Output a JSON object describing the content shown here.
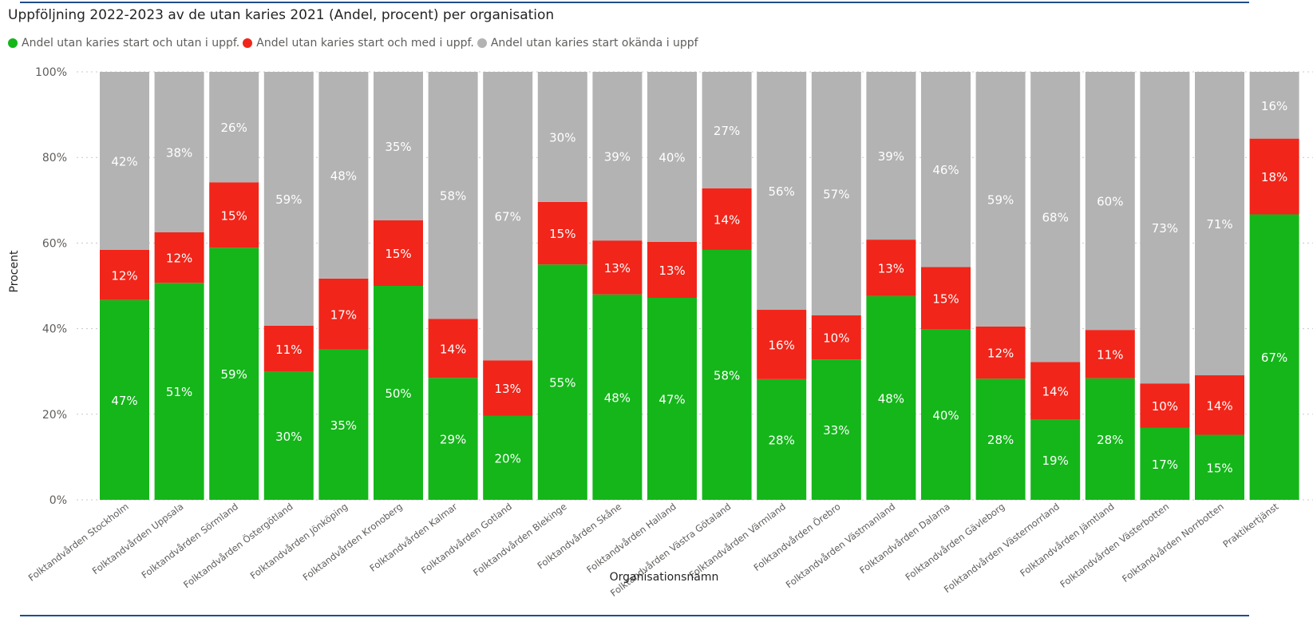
{
  "chart_data": {
    "type": "bar",
    "stacked": true,
    "title": "Uppföljning 2022-2023 av de utan karies 2021 (Andel, procent) per organisation",
    "xlabel": "Organisationsnamn",
    "ylabel": "Procent",
    "ylim": [
      0,
      100
    ],
    "yticks": [
      "0%",
      "20%",
      "40%",
      "60%",
      "80%",
      "100%"
    ],
    "grid": true,
    "legend_position": "top-left",
    "categories": [
      "Folktandvården Stockholm",
      "Folktandvården Uppsala",
      "Folktandvården Sörmland",
      "Folktandvården Östergötland",
      "Folktandvården Jönköping",
      "Folktandvården Kronoberg",
      "Folktandvården Kalmar",
      "Folktandvården Gotland",
      "Folktandvården Blekinge",
      "Folktandvården Skåne",
      "Folktandvården Halland",
      "Folktandvården Västra Götaland",
      "Folktandvården Värmland",
      "Folktandvården Örebro",
      "Folktandvården Västmanland",
      "Folktandvården Dalarna",
      "Folktandvården Gävleborg",
      "Folktandvården Västernorrland",
      "Folktandvården Jämtland",
      "Folktandvården Västerbotten",
      "Folktandvården Norrbotten",
      "Praktikertjänst"
    ],
    "series": [
      {
        "name": "Andel utan karies start och utan i uppf.",
        "color": "#14b61a",
        "values": [
          46.7,
          50.7,
          58.9,
          29.9,
          35.1,
          50.0,
          28.5,
          19.6,
          55.0,
          48.0,
          47.2,
          58.4,
          28.2,
          32.8,
          47.6,
          39.8,
          28.3,
          18.7,
          28.4,
          16.8,
          15.2,
          66.7
        ],
        "labels": [
          "47%",
          "51%",
          "59%",
          "30%",
          "35%",
          "50%",
          "29%",
          "20%",
          "55%",
          "48%",
          "47%",
          "58%",
          "28%",
          "33%",
          "48%",
          "40%",
          "28%",
          "19%",
          "28%",
          "17%",
          "15%",
          "67%"
        ]
      },
      {
        "name": "Andel utan karies start och med i uppf.",
        "color": "#f1251a",
        "values": [
          11.7,
          11.8,
          15.3,
          10.8,
          16.6,
          15.3,
          13.8,
          13.0,
          14.6,
          12.6,
          13.1,
          14.4,
          16.2,
          10.3,
          13.2,
          14.6,
          12.2,
          13.5,
          11.3,
          10.4,
          13.9,
          17.7
        ],
        "labels": [
          "12%",
          "12%",
          "15%",
          "11%",
          "17%",
          "15%",
          "14%",
          "13%",
          "15%",
          "13%",
          "13%",
          "14%",
          "16%",
          "10%",
          "13%",
          "15%",
          "12%",
          "14%",
          "11%",
          "10%",
          "14%",
          "18%"
        ]
      },
      {
        "name": "Andel utan karies start okända i uppf",
        "color": "#b3b3b3",
        "values": [
          41.6,
          37.5,
          25.8,
          59.3,
          48.3,
          34.7,
          57.7,
          67.4,
          30.4,
          39.4,
          39.7,
          27.2,
          55.6,
          56.9,
          39.2,
          45.6,
          59.5,
          67.8,
          60.3,
          72.8,
          70.9,
          15.6
        ],
        "labels": [
          "42%",
          "38%",
          "26%",
          "59%",
          "48%",
          "35%",
          "58%",
          "67%",
          "30%",
          "39%",
          "40%",
          "27%",
          "56%",
          "57%",
          "39%",
          "46%",
          "59%",
          "68%",
          "60%",
          "73%",
          "71%",
          "16%"
        ]
      }
    ]
  }
}
